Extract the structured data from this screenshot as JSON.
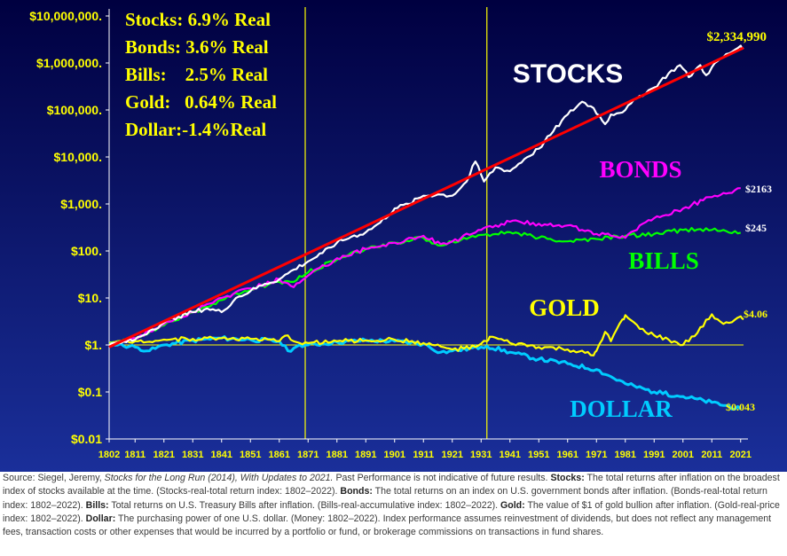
{
  "chart_data": {
    "type": "line",
    "y_scale": "log",
    "ylim": [
      0.01,
      10000000
    ],
    "y_tick_labels": [
      "$10,000,000.",
      "$1,000,000.",
      "$100,000.",
      "$10,000.",
      "$1,000.",
      "$100.",
      "$10.",
      "$1.",
      "$0.1",
      "$0.01"
    ],
    "y_tick_values": [
      10000000,
      1000000,
      100000,
      10000,
      1000,
      100,
      10,
      1,
      0.1,
      0.01
    ],
    "x_tick_labels": [
      "1802",
      "1811",
      "1821",
      "1831",
      "1841",
      "1851",
      "1861",
      "1871",
      "1881",
      "1891",
      "1901",
      "1911",
      "1921",
      "1931",
      "1941",
      "1951",
      "1961",
      "1971",
      "1981",
      "1991",
      "2001",
      "2011",
      "2021"
    ],
    "xlim": [
      1802,
      2022
    ],
    "vertical_lines": [
      1870,
      1933
    ],
    "reference_line_y": 1,
    "colors": {
      "background_top": "#000040",
      "background_bottom": "#1a2f9a",
      "text": "#ffff00",
      "axis": "#ffffff",
      "stocks": "#ffffff",
      "bonds": "#ff00ff",
      "bills": "#00ff00",
      "gold": "#ffff00",
      "dollar": "#00ccff",
      "trend": "#ff0000"
    },
    "legend_box": [
      "Stocks: 6.9% Real",
      "Bonds: 3.6% Real",
      "Bills:    2.5% Real",
      "Gold:   0.64% Real",
      "Dollar:-1.4%Real"
    ],
    "trend_line": {
      "x": [
        1802,
        2022
      ],
      "y": [
        0.9,
        2100000
      ]
    },
    "series": [
      {
        "name": "STOCKS",
        "end_label": "$2,334,990",
        "color": "#ffffff",
        "x": [
          1802,
          1806,
          1811,
          1816,
          1821,
          1826,
          1831,
          1836,
          1841,
          1846,
          1851,
          1856,
          1861,
          1866,
          1871,
          1876,
          1881,
          1886,
          1891,
          1896,
          1901,
          1906,
          1911,
          1916,
          1921,
          1926,
          1929,
          1932,
          1936,
          1941,
          1946,
          1951,
          1956,
          1961,
          1966,
          1970,
          1974,
          1976,
          1981,
          1986,
          1991,
          1996,
          2000,
          2003,
          2007,
          2009,
          2013,
          2017,
          2021,
          2022
        ],
        "y": [
          1,
          1.1,
          1.3,
          2,
          3,
          4,
          5,
          6,
          5,
          10,
          14,
          20,
          25,
          40,
          60,
          90,
          150,
          200,
          250,
          400,
          800,
          1000,
          1500,
          1600,
          1500,
          3000,
          8000,
          3000,
          6000,
          5000,
          9000,
          15000,
          35000,
          80000,
          150000,
          110000,
          50000,
          80000,
          100000,
          200000,
          300000,
          600000,
          900000,
          500000,
          900000,
          550000,
          1100000,
          1600000,
          2334990,
          2100000
        ]
      },
      {
        "name": "BONDS",
        "end_label": "$2163",
        "color": "#ff00ff",
        "x": [
          1802,
          1811,
          1821,
          1831,
          1841,
          1851,
          1861,
          1866,
          1871,
          1881,
          1891,
          1901,
          1911,
          1917,
          1921,
          1931,
          1941,
          1951,
          1961,
          1971,
          1976,
          1981,
          1986,
          1991,
          2001,
          2011,
          2021
        ],
        "y": [
          1,
          1.4,
          2.8,
          5,
          10,
          16,
          25,
          17,
          30,
          70,
          110,
          150,
          210,
          140,
          160,
          280,
          420,
          380,
          350,
          230,
          210,
          190,
          350,
          500,
          800,
          1400,
          2163
        ]
      },
      {
        "name": "BILLS",
        "end_label": "$245",
        "color": "#00ff00",
        "x": [
          1802,
          1811,
          1821,
          1831,
          1841,
          1851,
          1861,
          1866,
          1871,
          1881,
          1891,
          1901,
          1911,
          1917,
          1921,
          1931,
          1941,
          1951,
          1961,
          1971,
          1981,
          1991,
          2001,
          2011,
          2021
        ],
        "y": [
          1,
          1.4,
          2.6,
          5,
          9,
          15,
          22,
          22,
          35,
          65,
          110,
          150,
          190,
          130,
          160,
          220,
          250,
          190,
          160,
          180,
          210,
          230,
          280,
          280,
          245
        ]
      },
      {
        "name": "GOLD",
        "end_label": "$4.06",
        "color": "#ffff00",
        "x": [
          1802,
          1811,
          1821,
          1831,
          1841,
          1851,
          1861,
          1864,
          1866,
          1871,
          1881,
          1891,
          1901,
          1911,
          1921,
          1929,
          1933,
          1934,
          1941,
          1951,
          1961,
          1970,
          1971,
          1974,
          1976,
          1980,
          1981,
          1986,
          1991,
          2001,
          2006,
          2011,
          2015,
          2021,
          2022
        ],
        "y": [
          1.1,
          1.2,
          1.3,
          1.35,
          1.4,
          1.35,
          1.2,
          1.6,
          1.2,
          1.1,
          1.2,
          1.25,
          1.3,
          1.1,
          0.8,
          0.9,
          1.2,
          1.5,
          1.1,
          0.9,
          0.8,
          0.6,
          0.75,
          1.9,
          1.2,
          3.5,
          4.3,
          2.2,
          1.6,
          1.0,
          1.8,
          4.5,
          2.8,
          4.06,
          3.5
        ]
      },
      {
        "name": "DOLLAR",
        "end_label": "$0.043",
        "color": "#00ccff",
        "x": [
          1802,
          1811,
          1816,
          1821,
          1831,
          1841,
          1851,
          1861,
          1864,
          1866,
          1871,
          1881,
          1891,
          1901,
          1911,
          1917,
          1921,
          1931,
          1933,
          1941,
          1951,
          1961,
          1971,
          1981,
          1991,
          2001,
          2011,
          2021
        ],
        "y": [
          1.1,
          0.9,
          0.75,
          1,
          1.25,
          1.4,
          1.3,
          1.2,
          0.75,
          0.85,
          1.0,
          1.15,
          1.25,
          1.2,
          1.05,
          0.7,
          0.75,
          0.9,
          0.95,
          0.7,
          0.5,
          0.4,
          0.3,
          0.15,
          0.1,
          0.08,
          0.06,
          0.043
        ]
      }
    ]
  },
  "caption": {
    "source_prefix": "Source: Siegel, Jeremy,",
    "source_title": "Stocks for the Long Run (2014), With Updates to 2021.",
    "source_rest": "Past Performance is not indicative of future results.",
    "stocks_label": "Stocks:",
    "stocks_text": "The total returns after inflation on the broadest index of stocks available at the time. (Stocks-real-total return index: 1802–2022).",
    "bonds_label": "Bonds:",
    "bonds_text": "The total returns on an index on U.S. government bonds after inflation. (Bonds-real-total return index: 1802–2022).",
    "bills_label": "Bills:",
    "bills_text": "Total returns on U.S. Treasury Bills after inflation. (Bills-real-accumulative index: 1802–2022).",
    "gold_label": "Gold:",
    "gold_text": "The value of $1 of gold bullion after inflation. (Gold-real-price index: 1802–2022).",
    "dollar_label": "Dollar:",
    "dollar_text": "The purchasing power of one U.S. dollar. (Money: 1802–2022). Index performance assumes reinvestment of dividends, but does not reflect any management fees, transaction costs or other expenses that would be incurred by a portfolio or fund, or brokerage commissions on transactions in fund shares."
  }
}
